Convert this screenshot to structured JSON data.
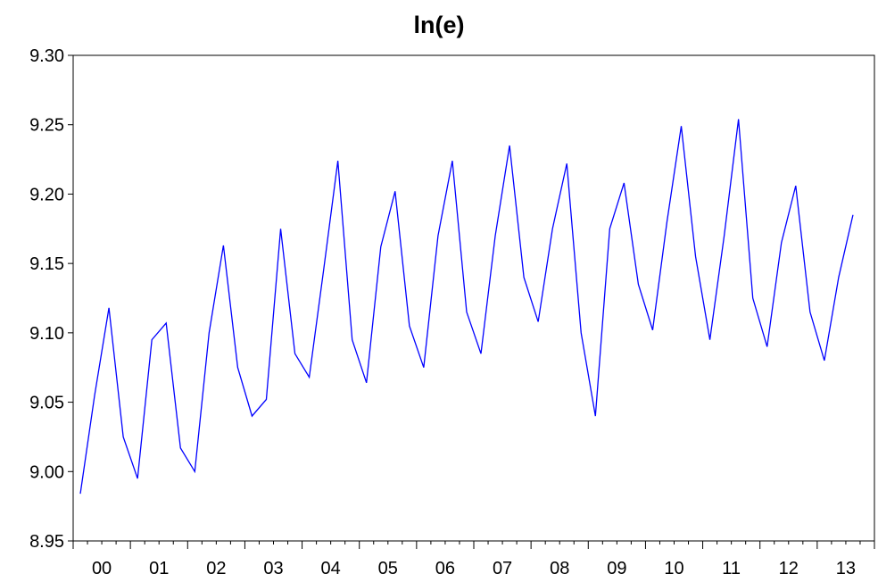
{
  "chart_data": {
    "type": "line",
    "title": "ln(e)",
    "xlabel": "",
    "ylabel": "",
    "x_tick_labels": [
      "00",
      "01",
      "02",
      "03",
      "04",
      "05",
      "06",
      "07",
      "08",
      "09",
      "10",
      "11",
      "12",
      "13"
    ],
    "y_tick_labels": [
      "8.95",
      "9.00",
      "9.05",
      "9.10",
      "9.15",
      "9.20",
      "9.25",
      "9.30"
    ],
    "ylim": [
      8.95,
      9.3
    ],
    "frequency": "quarterly",
    "start": "2000Q1",
    "grid": false,
    "legend": "none",
    "series": [
      {
        "color": "#0000ff",
        "values": [
          8.984,
          9.055,
          9.118,
          9.025,
          8.995,
          9.095,
          9.107,
          9.017,
          9.0,
          9.1,
          9.163,
          9.075,
          9.04,
          9.052,
          9.175,
          9.085,
          9.068,
          9.145,
          9.224,
          9.095,
          9.064,
          9.162,
          9.202,
          9.105,
          9.075,
          9.17,
          9.224,
          9.115,
          9.085,
          9.17,
          9.235,
          9.14,
          9.108,
          9.175,
          9.222,
          9.1,
          9.04,
          9.175,
          9.208,
          9.135,
          9.102,
          9.18,
          9.249,
          9.155,
          9.095,
          9.17,
          9.254,
          9.125,
          9.09,
          9.165,
          9.206,
          9.115,
          9.08,
          9.14,
          9.185
        ]
      }
    ]
  }
}
